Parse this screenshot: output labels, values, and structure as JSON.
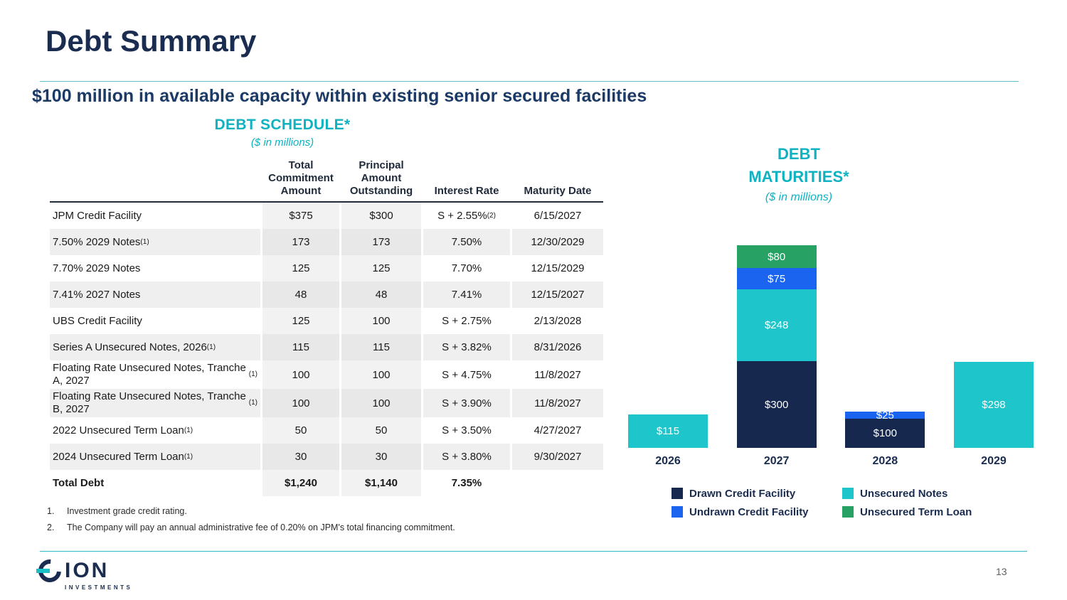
{
  "slide": {
    "title": "Debt Summary",
    "subtitle": "$100 million in available capacity within existing senior secured facilities",
    "page_number": "13"
  },
  "debt_schedule": {
    "heading": "DEBT SCHEDULE*",
    "subheading": "($ in millions)",
    "columns": [
      "",
      "Total Commitment Amount",
      "Principal Amount Outstanding",
      "Interest Rate",
      "Maturity Date"
    ],
    "rows": [
      {
        "label": "JPM Credit Facility",
        "label_sup": "",
        "commitment": "$375",
        "outstanding": "$300",
        "rate": "S + 2.55%",
        "rate_sup": "(2)",
        "maturity": "6/15/2027",
        "bold": false
      },
      {
        "label": "7.50% 2029 Notes",
        "label_sup": "(1)",
        "commitment": "173",
        "outstanding": "173",
        "rate": "7.50%",
        "rate_sup": "",
        "maturity": "12/30/2029",
        "bold": false
      },
      {
        "label": "7.70% 2029 Notes",
        "label_sup": "",
        "commitment": "125",
        "outstanding": "125",
        "rate": "7.70%",
        "rate_sup": "",
        "maturity": "12/15/2029",
        "bold": false
      },
      {
        "label": "7.41% 2027 Notes",
        "label_sup": "",
        "commitment": "48",
        "outstanding": "48",
        "rate": "7.41%",
        "rate_sup": "",
        "maturity": "12/15/2027",
        "bold": false
      },
      {
        "label": "UBS Credit Facility",
        "label_sup": "",
        "commitment": "125",
        "outstanding": "100",
        "rate": "S + 2.75%",
        "rate_sup": "",
        "maturity": "2/13/2028",
        "bold": false
      },
      {
        "label": "Series A Unsecured Notes, 2026",
        "label_sup": "(1)",
        "commitment": "115",
        "outstanding": "115",
        "rate": "S + 3.82%",
        "rate_sup": "",
        "maturity": "8/31/2026",
        "bold": false
      },
      {
        "label": "Floating Rate Unsecured Notes, Tranche A, 2027",
        "label_sup": "(1)",
        "commitment": "100",
        "outstanding": "100",
        "rate": "S + 4.75%",
        "rate_sup": "",
        "maturity": "11/8/2027",
        "bold": false
      },
      {
        "label": "Floating Rate Unsecured Notes, Tranche B, 2027",
        "label_sup": "(1)",
        "commitment": "100",
        "outstanding": "100",
        "rate": "S + 3.90%",
        "rate_sup": "",
        "maturity": "11/8/2027",
        "bold": false
      },
      {
        "label": "2022 Unsecured Term Loan",
        "label_sup": "(1)",
        "commitment": "50",
        "outstanding": "50",
        "rate": "S + 3.50%",
        "rate_sup": "",
        "maturity": "4/27/2027",
        "bold": false
      },
      {
        "label": "2024 Unsecured Term Loan",
        "label_sup": "(1)",
        "commitment": "30",
        "outstanding": "30",
        "rate": "S + 3.80%",
        "rate_sup": "",
        "maturity": "9/30/2027",
        "bold": false
      },
      {
        "label": "Total Debt",
        "label_sup": "",
        "commitment": "$1,240",
        "outstanding": "$1,140",
        "rate": "7.35%",
        "rate_sup": "",
        "maturity": "",
        "bold": true
      }
    ],
    "footnotes": [
      {
        "num": "1.",
        "text": "Investment grade credit rating."
      },
      {
        "num": "2.",
        "text": "The Company will pay an annual administrative fee of 0.20% on JPM's total financing commitment."
      }
    ]
  },
  "chart_data": {
    "type": "bar",
    "stacked": true,
    "title": "DEBT MATURITIES*",
    "subtitle": "($ in millions)",
    "categories": [
      "2026",
      "2027",
      "2028",
      "2029"
    ],
    "series": [
      {
        "name": "Drawn Credit Facility",
        "color": "#16284d",
        "values": [
          0,
          300,
          100,
          0
        ]
      },
      {
        "name": "Unsecured Notes",
        "color": "#1ec6cc",
        "values": [
          115,
          248,
          0,
          298
        ]
      },
      {
        "name": "Undrawn Credit Facility",
        "color": "#1b64f0",
        "values": [
          0,
          75,
          25,
          0
        ]
      },
      {
        "name": "Unsecured Term Loan",
        "color": "#27a164",
        "values": [
          0,
          80,
          0,
          0
        ]
      }
    ],
    "value_prefix": "$",
    "ylim": [
      0,
      710
    ],
    "legend_position": "bottom",
    "grid": false
  },
  "legend": {
    "items": [
      {
        "label": "Drawn Credit Facility",
        "color": "#16284d"
      },
      {
        "label": "Undrawn Credit Facility",
        "color": "#1b64f0"
      },
      {
        "label": "Unsecured Notes",
        "color": "#1ec6cc"
      },
      {
        "label": "Unsecured Term Loan",
        "color": "#27a164"
      }
    ]
  },
  "footer": {
    "logo_text": "ION",
    "logo_sub": "INVESTMENTS"
  },
  "colors": {
    "navy": "#1a2c50",
    "teal": "#0fb2c1",
    "bar_teal": "#1ec6cc",
    "blue": "#1b64f0",
    "green": "#27a164"
  }
}
